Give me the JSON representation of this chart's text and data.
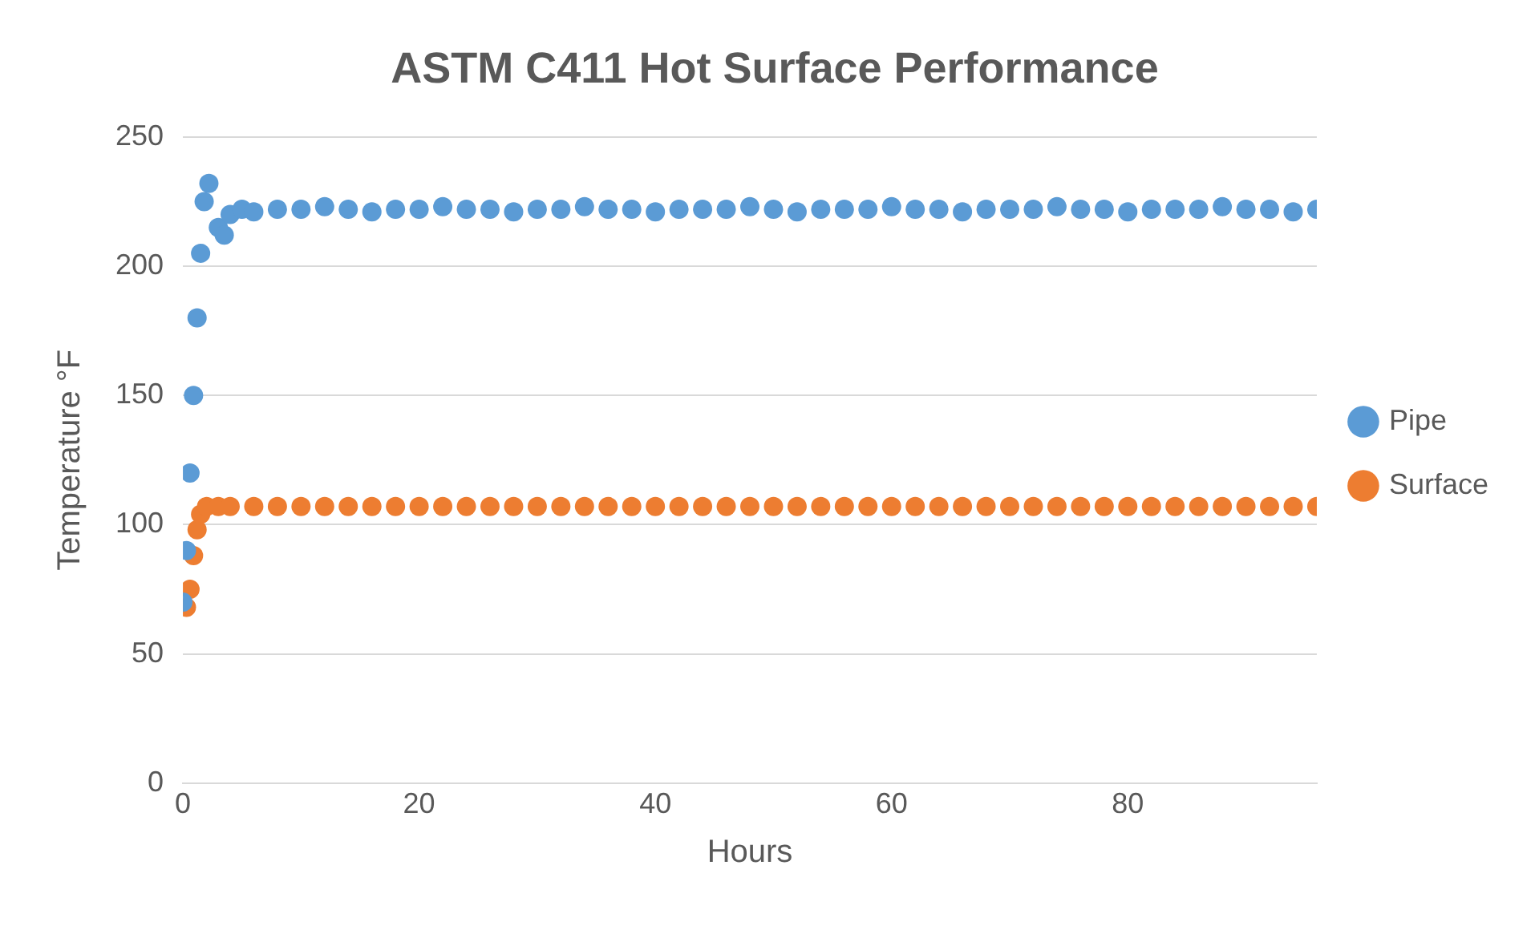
{
  "chart_data": {
    "type": "scatter",
    "title": "ASTM C411 Hot Surface Performance",
    "xlabel": "Hours",
    "ylabel": "Temperature °F",
    "xlim": [
      0,
      96
    ],
    "xticks": [
      0,
      20,
      40,
      60,
      80
    ],
    "ylim": [
      0,
      250
    ],
    "yticks": [
      0,
      50,
      100,
      150,
      200,
      250
    ],
    "grid": "y",
    "legend": "right",
    "marker": "circle",
    "series": [
      {
        "name": "Pipe",
        "color": "#5b9bd5",
        "x": [
          0,
          0.3,
          0.6,
          0.9,
          1.2,
          1.5,
          1.8,
          2.2,
          3,
          3.5,
          4,
          5,
          6,
          8,
          10,
          12,
          14,
          16,
          18,
          20,
          22,
          24,
          26,
          28,
          30,
          32,
          34,
          36,
          38,
          40,
          42,
          44,
          46,
          48,
          50,
          52,
          54,
          56,
          58,
          60,
          62,
          64,
          66,
          68,
          70,
          72,
          74,
          76,
          78,
          80,
          82,
          84,
          86,
          88,
          90,
          92,
          94,
          96
        ],
        "values": [
          70,
          90,
          120,
          150,
          180,
          205,
          225,
          232,
          215,
          212,
          220,
          222,
          221,
          222,
          222,
          223,
          222,
          221,
          222,
          222,
          223,
          222,
          222,
          221,
          222,
          222,
          223,
          222,
          222,
          221,
          222,
          222,
          222,
          223,
          222,
          221,
          222,
          222,
          222,
          223,
          222,
          222,
          221,
          222,
          222,
          222,
          223,
          222,
          222,
          221,
          222,
          222,
          222,
          223,
          222,
          222,
          221,
          222
        ]
      },
      {
        "name": "Surface",
        "color": "#ed7d31",
        "x": [
          0.3,
          0.6,
          0.9,
          1.2,
          1.5,
          2,
          3,
          4,
          6,
          8,
          10,
          12,
          14,
          16,
          18,
          20,
          22,
          24,
          26,
          28,
          30,
          32,
          34,
          36,
          38,
          40,
          42,
          44,
          46,
          48,
          50,
          52,
          54,
          56,
          58,
          60,
          62,
          64,
          66,
          68,
          70,
          72,
          74,
          76,
          78,
          80,
          82,
          84,
          86,
          88,
          90,
          92,
          94,
          96
        ],
        "values": [
          68,
          75,
          88,
          98,
          104,
          107,
          107,
          107,
          107,
          107,
          107,
          107,
          107,
          107,
          107,
          107,
          107,
          107,
          107,
          107,
          107,
          107,
          107,
          107,
          107,
          107,
          107,
          107,
          107,
          107,
          107,
          107,
          107,
          107,
          107,
          107,
          107,
          107,
          107,
          107,
          107,
          107,
          107,
          107,
          107,
          107,
          107,
          107,
          107,
          107,
          107,
          107,
          107,
          107
        ]
      }
    ]
  }
}
